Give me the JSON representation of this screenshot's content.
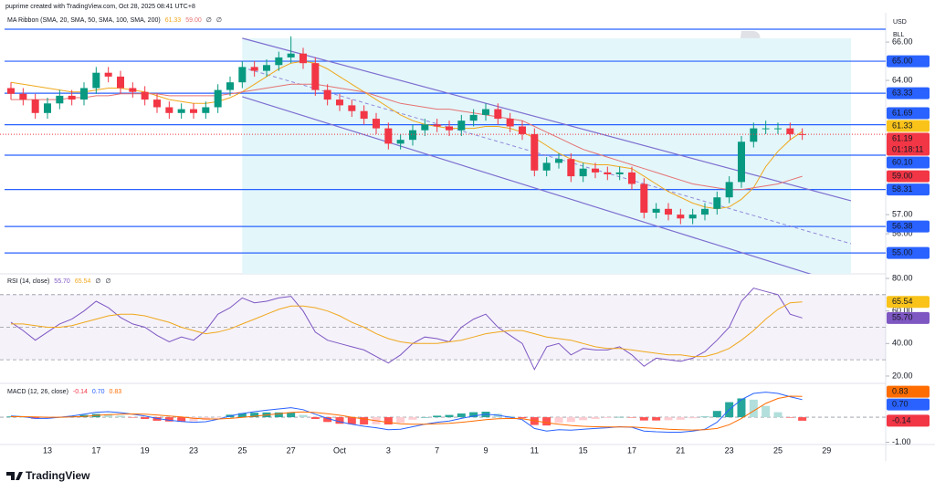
{
  "header": {
    "credit": "puprime created with TradingView.com, Oct 28, 2025 08:41 UTC+8",
    "currency": "USD",
    "unit": "BLL",
    "watermark": "PUPRIME",
    "logo": "TradingView"
  },
  "chart_data": [
    {
      "type": "candlestick",
      "legend": {
        "title": "MA Ribbon (SMA, 20, SMA, 50, SMA, 100, SMA, 200)",
        "values": [
          "61.33",
          "59.00",
          "∅",
          "∅"
        ],
        "colors": [
          "#f0a81c",
          "#e57373",
          "#131722",
          "#131722"
        ]
      },
      "categories": [
        null,
        null,
        null,
        "13",
        null,
        null,
        null,
        "17",
        null,
        null,
        null,
        "19",
        null,
        null,
        null,
        "23",
        null,
        null,
        null,
        "25",
        null,
        null,
        null,
        "27",
        null,
        null,
        null,
        "Oct",
        null,
        null,
        null,
        "3",
        null,
        null,
        null,
        "7",
        null,
        null,
        null,
        "9",
        null,
        null,
        null,
        "11",
        null,
        null,
        null,
        "15",
        null,
        null,
        null,
        "17",
        null,
        null,
        null,
        "21",
        null,
        null,
        null,
        "23",
        null,
        null,
        null,
        "25",
        null,
        null,
        null,
        "29",
        null,
        null
      ],
      "open": [
        63.6,
        63.3,
        63.0,
        62.3,
        62.8,
        63.2,
        63.0,
        63.6,
        64.4,
        64.2,
        63.6,
        63.4,
        63.0,
        62.6,
        62.3,
        62.5,
        62.3,
        62.6,
        63.5,
        63.9,
        64.7,
        64.5,
        64.8,
        65.2,
        65.4,
        64.9,
        63.5,
        63.0,
        62.7,
        62.4,
        62.0,
        61.5,
        60.7,
        60.9,
        61.4,
        61.7,
        61.6,
        61.4,
        61.9,
        62.2,
        62.5,
        62.0,
        61.6,
        61.2,
        59.3,
        59.7,
        59.9,
        59.0,
        59.4,
        59.2,
        59.1,
        59.2,
        58.6,
        57.1,
        57.3,
        57.0,
        56.8,
        57.0,
        57.3,
        57.9,
        58.7,
        60.8,
        61.5,
        61.5,
        61.5,
        61.2,
        null,
        null,
        null,
        null
      ],
      "high": [
        63.9,
        63.6,
        63.3,
        63.1,
        63.5,
        63.5,
        63.9,
        64.7,
        64.7,
        64.5,
        63.9,
        63.7,
        63.3,
        62.9,
        62.8,
        62.8,
        62.9,
        63.8,
        64.2,
        65.0,
        65.0,
        65.1,
        65.5,
        66.3,
        65.7,
        65.2,
        63.8,
        63.3,
        63.0,
        62.7,
        62.3,
        61.8,
        61.2,
        61.7,
        62.0,
        62.0,
        61.9,
        62.2,
        62.5,
        62.8,
        62.8,
        62.3,
        61.9,
        61.5,
        60.0,
        60.2,
        60.2,
        59.7,
        59.7,
        59.5,
        59.5,
        59.5,
        58.9,
        57.6,
        57.6,
        57.3,
        57.3,
        57.6,
        58.2,
        59.0,
        61.1,
        61.8,
        61.9,
        61.8,
        61.8,
        61.5,
        null,
        null,
        null,
        null
      ],
      "low": [
        63.0,
        62.7,
        62.0,
        62.0,
        62.5,
        62.7,
        62.7,
        63.3,
        63.9,
        63.3,
        63.1,
        62.7,
        62.3,
        62.0,
        62.0,
        62.0,
        62.0,
        62.3,
        63.2,
        63.6,
        64.2,
        64.2,
        64.5,
        64.9,
        64.6,
        63.2,
        62.7,
        62.4,
        62.1,
        61.7,
        61.2,
        60.4,
        60.4,
        60.6,
        61.1,
        61.3,
        61.1,
        61.1,
        61.6,
        61.9,
        61.7,
        61.3,
        60.9,
        59.0,
        59.0,
        59.4,
        58.7,
        58.7,
        58.9,
        58.8,
        58.8,
        58.3,
        56.8,
        56.8,
        56.7,
        56.5,
        56.5,
        56.7,
        57.0,
        57.6,
        58.4,
        60.5,
        61.2,
        61.2,
        60.9,
        60.9,
        null,
        null,
        null,
        null
      ],
      "close": [
        63.3,
        63.0,
        62.3,
        62.8,
        63.2,
        63.0,
        63.6,
        64.4,
        64.2,
        63.6,
        63.4,
        63.0,
        62.6,
        62.3,
        62.5,
        62.3,
        62.6,
        63.5,
        63.9,
        64.7,
        64.5,
        64.8,
        65.2,
        65.4,
        64.9,
        63.5,
        63.0,
        62.7,
        62.4,
        62.0,
        61.5,
        60.7,
        60.9,
        61.4,
        61.7,
        61.6,
        61.4,
        61.9,
        62.2,
        62.5,
        62.0,
        61.6,
        61.2,
        59.3,
        59.7,
        59.9,
        59.0,
        59.4,
        59.2,
        59.1,
        59.2,
        58.6,
        57.1,
        57.3,
        57.0,
        56.8,
        57.0,
        57.3,
        57.9,
        58.7,
        60.8,
        61.5,
        61.5,
        61.5,
        61.2,
        61.19,
        null,
        null,
        null,
        null
      ],
      "up_color": "#089981",
      "down_color": "#f23645",
      "lines": [
        {
          "color": "#f0a81c",
          "values": [
            63.9,
            63.8,
            63.7,
            63.6,
            63.5,
            63.4,
            63.4,
            63.5,
            63.6,
            63.6,
            63.5,
            63.4,
            63.2,
            63.0,
            62.9,
            62.8,
            62.8,
            62.9,
            63.1,
            63.4,
            63.8,
            64.2,
            64.6,
            64.9,
            65.0,
            64.9,
            64.6,
            64.2,
            63.8,
            63.4,
            63.0,
            62.6,
            62.2,
            61.9,
            61.7,
            61.6,
            61.5,
            61.5,
            61.5,
            61.6,
            61.6,
            61.5,
            61.3,
            61.0,
            60.6,
            60.2,
            59.9,
            59.7,
            59.6,
            59.6,
            59.5,
            59.4,
            59.0,
            58.6,
            58.2,
            57.9,
            57.6,
            57.4,
            57.3,
            57.4,
            57.8,
            58.4,
            59.5,
            60.3,
            60.9,
            61.33,
            null,
            null,
            null,
            null
          ]
        },
        {
          "color": "#e57373",
          "values": [
            63.0,
            63.0,
            63.0,
            63.0,
            63.0,
            63.1,
            63.1,
            63.2,
            63.2,
            63.3,
            63.3,
            63.3,
            63.3,
            63.2,
            63.2,
            63.2,
            63.2,
            63.2,
            63.3,
            63.4,
            63.5,
            63.6,
            63.7,
            63.8,
            63.8,
            63.8,
            63.7,
            63.6,
            63.5,
            63.4,
            63.2,
            63.0,
            62.8,
            62.7,
            62.6,
            62.5,
            62.5,
            62.4,
            62.3,
            62.2,
            62.1,
            62.0,
            61.9,
            61.6,
            61.3,
            61.0,
            60.7,
            60.4,
            60.2,
            60.0,
            59.8,
            59.6,
            59.4,
            59.2,
            59.0,
            58.8,
            58.6,
            58.5,
            58.4,
            58.3,
            58.3,
            58.4,
            58.5,
            58.6,
            58.8,
            59.0,
            null,
            null,
            null,
            null
          ]
        }
      ],
      "ylim": [
        53.91,
        67.48
      ],
      "yticks": [
        {
          "value": 66,
          "label": "66.00"
        },
        {
          "value": 64,
          "label": "64.00"
        },
        {
          "value": 57,
          "label": "57.00"
        },
        {
          "value": 56,
          "label": "56.00"
        }
      ],
      "level_color": "#2962ff",
      "levels": [
        66.67,
        {
          "value": 65,
          "label": "65.00"
        },
        {
          "value": 63.33,
          "label": "63.33"
        },
        {
          "value": 61.69,
          "label": "61.69"
        },
        {
          "value": 60.1,
          "label": "60.10"
        },
        {
          "value": 58.31,
          "label": "58.31"
        },
        {
          "value": 56.38,
          "label": "56.38"
        },
        {
          "value": 55,
          "label": "55.00"
        }
      ],
      "channel": {
        "start": 19,
        "end": 69,
        "upper": [
          66.2,
          57.72
        ],
        "lower": [
          63.15,
          53.24
        ],
        "color": "#7e6fd0",
        "fill": "#e3f6fa"
      },
      "tags": [
        {
          "value": 61.33,
          "label": "61.33",
          "color": "#f9c31a",
          "text_color": "#131722"
        },
        {
          "value": 61.19,
          "label": "61.19",
          "sublabel": "01:18:11",
          "color": "#f23645"
        },
        {
          "value": 59,
          "label": "59.00",
          "color": "#f23645"
        }
      ]
    },
    {
      "type": "line",
      "legend": {
        "title": "RSI (14, close)",
        "values": [
          "55.70",
          "65.54",
          "∅",
          "∅"
        ],
        "colors": [
          "#7e57c2",
          "#f0a81c",
          "#131722",
          "#131722"
        ]
      },
      "series": [
        {
          "color": "#7e57c2",
          "values": [
            53,
            48,
            42,
            47,
            52,
            55,
            60,
            66,
            62,
            56,
            52,
            50,
            45,
            41,
            44,
            42,
            48,
            58,
            62,
            68,
            65,
            66,
            68,
            69,
            60,
            47,
            42,
            40,
            38,
            36,
            32,
            28,
            33,
            40,
            44,
            43,
            41,
            50,
            55,
            58,
            50,
            45,
            40,
            24,
            38,
            40,
            33,
            37,
            36,
            36,
            38,
            33,
            26,
            31,
            30,
            29,
            31,
            35,
            42,
            50,
            66,
            74,
            72,
            70,
            58,
            55.7
          ]
        },
        {
          "color": "#f0a81c",
          "values": [
            52,
            52,
            51,
            50,
            50,
            51,
            53,
            55,
            57,
            58,
            58,
            57,
            55,
            53,
            50,
            48,
            46,
            47,
            49,
            52,
            55,
            58,
            61,
            63,
            63,
            62,
            60,
            57,
            53,
            50,
            46,
            43,
            41,
            40,
            40,
            40,
            41,
            42,
            44,
            46,
            47,
            48,
            48,
            46,
            44,
            43,
            42,
            40,
            38,
            37,
            37,
            36,
            35,
            34,
            33,
            33,
            32,
            32,
            34,
            37,
            42,
            48,
            55,
            61,
            65,
            65.54
          ]
        }
      ],
      "ylim": [
        15.5,
        82.8
      ],
      "yticks": [
        {
          "value": 80,
          "label": "80.00"
        },
        {
          "value": 60,
          "label": "60.00"
        },
        {
          "value": 40,
          "label": "40.00"
        },
        {
          "value": 20,
          "label": "20.00"
        }
      ],
      "levels": [
        70,
        50,
        30
      ],
      "band_color": "#7e57c2",
      "tags": [
        {
          "value": 65.54,
          "label": "65.54",
          "color": "#f9c31a",
          "text_color": "#131722"
        },
        {
          "value": 55.7,
          "label": "55.70",
          "color": "#7e57c2"
        }
      ]
    },
    {
      "type": "macd",
      "legend": {
        "title": "MACD (12, 26, close)",
        "values": [
          "-0.14",
          "0.70",
          "0.83"
        ],
        "colors": [
          "#f23645",
          "#2962ff",
          "#ff6d00"
        ]
      },
      "histogram": [
        0.03,
        0.0,
        -0.06,
        -0.05,
        0.0,
        0.04,
        0.09,
        0.13,
        0.12,
        0.06,
        -0.01,
        -0.07,
        -0.14,
        -0.17,
        -0.18,
        -0.16,
        -0.11,
        -0.01,
        0.1,
        0.16,
        0.18,
        0.19,
        0.19,
        0.19,
        0.09,
        -0.07,
        -0.19,
        -0.26,
        -0.28,
        -0.29,
        -0.28,
        -0.29,
        -0.22,
        -0.1,
        0.0,
        0.06,
        0.09,
        0.15,
        0.2,
        0.22,
        0.14,
        0.05,
        -0.04,
        -0.31,
        -0.33,
        -0.22,
        -0.19,
        -0.12,
        -0.07,
        -0.03,
        0.01,
        -0.01,
        -0.13,
        -0.13,
        -0.12,
        -0.1,
        -0.04,
        0.02,
        0.25,
        0.6,
        0.75,
        0.7,
        0.45,
        0.2,
        -0.02,
        -0.14
      ],
      "histogram_colors": [
        "#26a69a",
        "#b2dfdb",
        "#ffcdd2",
        "#ff5252"
      ],
      "series": [
        {
          "color": "#2962ff",
          "values": [
            0.05,
            0.02,
            -0.05,
            -0.05,
            0.0,
            0.05,
            0.12,
            0.2,
            0.22,
            0.18,
            0.12,
            0.05,
            -0.05,
            -0.12,
            -0.17,
            -0.2,
            -0.18,
            -0.08,
            0.05,
            0.15,
            0.22,
            0.28,
            0.33,
            0.38,
            0.3,
            0.12,
            -0.05,
            -0.18,
            -0.28,
            -0.36,
            -0.42,
            -0.5,
            -0.48,
            -0.38,
            -0.28,
            -0.2,
            -0.15,
            -0.05,
            0.05,
            0.12,
            0.08,
            0.0,
            -0.1,
            -0.45,
            -0.55,
            -0.5,
            -0.52,
            -0.48,
            -0.45,
            -0.42,
            -0.38,
            -0.4,
            -0.55,
            -0.58,
            -0.6,
            -0.6,
            -0.55,
            -0.48,
            -0.2,
            0.3,
            0.7,
            0.95,
            1.0,
            0.95,
            0.82,
            0.7
          ]
        },
        {
          "color": "#ff6d00",
          "values": [
            0.02,
            0.02,
            0.01,
            0.0,
            0.0,
            0.01,
            0.03,
            0.07,
            0.1,
            0.12,
            0.13,
            0.12,
            0.09,
            0.05,
            0.01,
            -0.04,
            -0.07,
            -0.07,
            -0.05,
            -0.01,
            0.04,
            0.09,
            0.14,
            0.19,
            0.21,
            0.19,
            0.14,
            0.08,
            0.0,
            -0.07,
            -0.14,
            -0.21,
            -0.26,
            -0.28,
            -0.28,
            -0.26,
            -0.24,
            -0.2,
            -0.15,
            -0.1,
            -0.06,
            -0.05,
            -0.06,
            -0.14,
            -0.22,
            -0.28,
            -0.33,
            -0.36,
            -0.38,
            -0.39,
            -0.39,
            -0.39,
            -0.42,
            -0.45,
            -0.48,
            -0.5,
            -0.51,
            -0.5,
            -0.45,
            -0.3,
            -0.05,
            0.25,
            0.55,
            0.75,
            0.84,
            0.83
          ]
        }
      ],
      "ylim": [
        -1.09,
        1.35
      ],
      "yticks": [
        {
          "value": -1,
          "label": "-1.00"
        }
      ],
      "levels": [
        0
      ],
      "tags": [
        {
          "value": 0.83,
          "label": "0.83",
          "color": "#ff6d00"
        },
        {
          "value": 0.7,
          "label": "0.70",
          "color": "#2962ff"
        },
        {
          "value": -0.14,
          "label": "-0.14",
          "color": "#f23645"
        }
      ]
    }
  ]
}
